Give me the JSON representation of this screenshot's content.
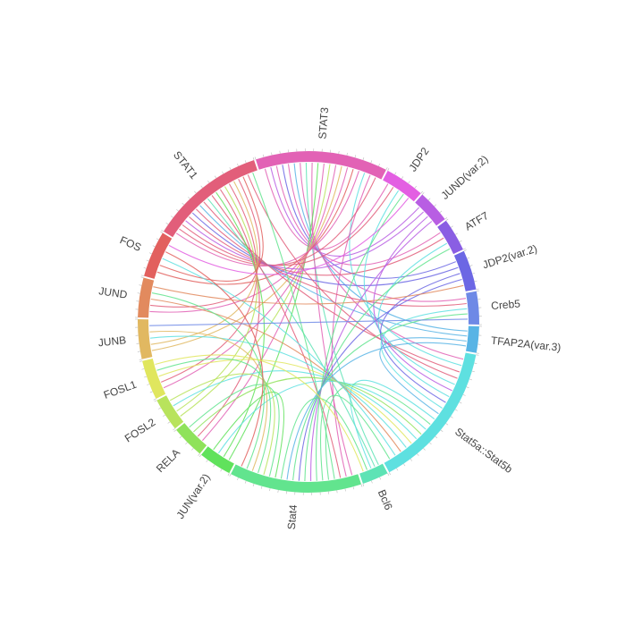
{
  "chart_data": {
    "type": "chord",
    "title": "",
    "segments": [
      {
        "label": "STAT3",
        "span": 40,
        "color": "#e262b5"
      },
      {
        "label": "JDP2",
        "span": 12,
        "color": "#e35fe2"
      },
      {
        "label": "JUND(var.2)",
        "span": 10,
        "color": "#b85ee3"
      },
      {
        "label": "ATF7",
        "span": 10,
        "color": "#8a5ee3"
      },
      {
        "label": "JDP2(var.2)",
        "span": 12,
        "color": "#6c67e4"
      },
      {
        "label": "Creb5",
        "span": 10,
        "color": "#6e89e6"
      },
      {
        "label": "TFAP2A(var.3)",
        "span": 8,
        "color": "#58b4e5"
      },
      {
        "label": "Stat5a::Stat5b",
        "span": 45,
        "color": "#5ee0e0"
      },
      {
        "label": "Bcl6",
        "span": 8,
        "color": "#5ee3b5"
      },
      {
        "label": "Stat4",
        "span": 40,
        "color": "#62e48e"
      },
      {
        "label": "JUN(var.2)",
        "span": 10,
        "color": "#60e25c"
      },
      {
        "label": "RELA",
        "span": 10,
        "color": "#8fe25a"
      },
      {
        "label": "FOSL2",
        "span": 10,
        "color": "#b8e35c"
      },
      {
        "label": "FOSL1",
        "span": 12,
        "color": "#e0e65e"
      },
      {
        "label": "JUNB",
        "span": 12,
        "color": "#e1b861"
      },
      {
        "label": "JUND",
        "span": 12,
        "color": "#e28a5e"
      },
      {
        "label": "FOS",
        "span": 14,
        "color": "#e2605e"
      },
      {
        "label": "STAT1",
        "span": 35,
        "color": "#e25e7a"
      }
    ],
    "links": [
      [
        "STAT3",
        "JDP2"
      ],
      [
        "STAT3",
        "JUND(var.2)"
      ],
      [
        "STAT3",
        "ATF7"
      ],
      [
        "STAT3",
        "JDP2(var.2)"
      ],
      [
        "STAT3",
        "Creb5"
      ],
      [
        "STAT3",
        "TFAP2A(var.3)"
      ],
      [
        "STAT3",
        "Stat5a::Stat5b"
      ],
      [
        "STAT3",
        "Bcl6"
      ],
      [
        "STAT3",
        "Stat4"
      ],
      [
        "STAT3",
        "JUN(var.2)"
      ],
      [
        "STAT3",
        "RELA"
      ],
      [
        "STAT3",
        "FOSL2"
      ],
      [
        "STAT3",
        "FOSL1"
      ],
      [
        "STAT3",
        "JUNB"
      ],
      [
        "STAT3",
        "JUND"
      ],
      [
        "STAT3",
        "FOS"
      ],
      [
        "STAT3",
        "STAT1"
      ],
      [
        "STAT3",
        "Stat5a::Stat5b"
      ],
      [
        "STAT3",
        "Stat4"
      ],
      [
        "STAT3",
        "STAT1"
      ],
      [
        "STAT1",
        "JDP2"
      ],
      [
        "STAT1",
        "JUND(var.2)"
      ],
      [
        "STAT1",
        "ATF7"
      ],
      [
        "STAT1",
        "JDP2(var.2)"
      ],
      [
        "STAT1",
        "Creb5"
      ],
      [
        "STAT1",
        "TFAP2A(var.3)"
      ],
      [
        "STAT1",
        "Stat5a::Stat5b"
      ],
      [
        "STAT1",
        "Bcl6"
      ],
      [
        "STAT1",
        "Stat4"
      ],
      [
        "STAT1",
        "JUN(var.2)"
      ],
      [
        "STAT1",
        "RELA"
      ],
      [
        "STAT1",
        "FOSL2"
      ],
      [
        "STAT1",
        "FOSL1"
      ],
      [
        "STAT1",
        "JUNB"
      ],
      [
        "STAT1",
        "JUND"
      ],
      [
        "STAT1",
        "FOS"
      ],
      [
        "STAT1",
        "Stat5a::Stat5b"
      ],
      [
        "STAT1",
        "Stat4"
      ],
      [
        "Stat5a::Stat5b",
        "JDP2"
      ],
      [
        "Stat5a::Stat5b",
        "JUND(var.2)"
      ],
      [
        "Stat5a::Stat5b",
        "ATF7"
      ],
      [
        "Stat5a::Stat5b",
        "JDP2(var.2)"
      ],
      [
        "Stat5a::Stat5b",
        "Creb5"
      ],
      [
        "Stat5a::Stat5b",
        "TFAP2A(var.3)"
      ],
      [
        "Stat5a::Stat5b",
        "Bcl6"
      ],
      [
        "Stat5a::Stat5b",
        "Stat4"
      ],
      [
        "Stat5a::Stat5b",
        "JUN(var.2)"
      ],
      [
        "Stat5a::Stat5b",
        "RELA"
      ],
      [
        "Stat5a::Stat5b",
        "FOSL2"
      ],
      [
        "Stat5a::Stat5b",
        "FOSL1"
      ],
      [
        "Stat5a::Stat5b",
        "JUNB"
      ],
      [
        "Stat5a::Stat5b",
        "JUND"
      ],
      [
        "Stat5a::Stat5b",
        "FOS"
      ],
      [
        "Stat5a::Stat5b",
        "Stat4"
      ],
      [
        "Stat4",
        "JDP2"
      ],
      [
        "Stat4",
        "JUND(var.2)"
      ],
      [
        "Stat4",
        "ATF7"
      ],
      [
        "Stat4",
        "JDP2(var.2)"
      ],
      [
        "Stat4",
        "Creb5"
      ],
      [
        "Stat4",
        "TFAP2A(var.3)"
      ],
      [
        "Stat4",
        "Bcl6"
      ],
      [
        "Stat4",
        "JUN(var.2)"
      ],
      [
        "Stat4",
        "RELA"
      ],
      [
        "Stat4",
        "FOSL2"
      ],
      [
        "Stat4",
        "FOSL1"
      ],
      [
        "Stat4",
        "JUNB"
      ],
      [
        "Stat4",
        "JUND"
      ],
      [
        "Stat4",
        "FOS"
      ],
      [
        "JDP2",
        "FOS"
      ],
      [
        "JDP2(var.2)",
        "JUND"
      ],
      [
        "Creb5",
        "JUNB"
      ],
      [
        "Bcl6",
        "FOSL1"
      ]
    ]
  }
}
